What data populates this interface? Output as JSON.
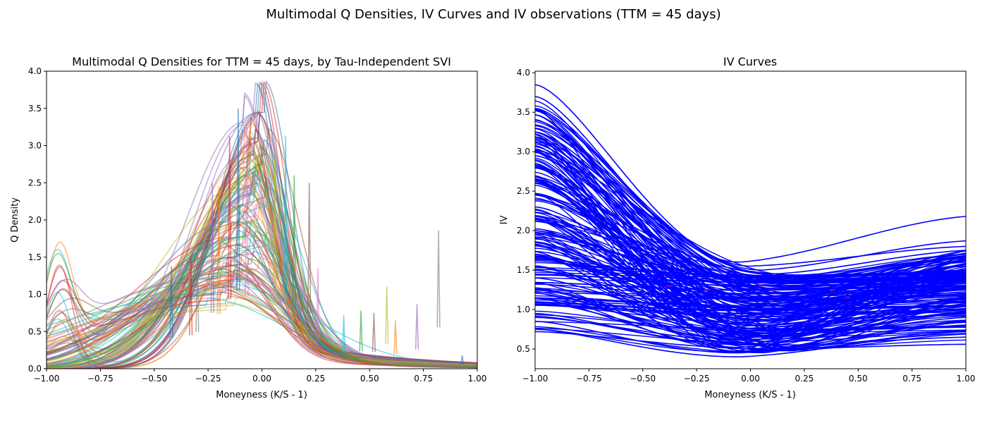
{
  "figure": {
    "suptitle": "Multimodal Q Densities, IV Curves and IV observations (TTM = 45 days)"
  },
  "chart_data": [
    {
      "type": "line",
      "title": "Multimodal Q Densities for TTM = 45 days, by Tau-Independent SVI",
      "xlabel": "Moneyness (K/S - 1)",
      "ylabel": "Q Density",
      "xlim": [
        -1.0,
        1.0
      ],
      "ylim": [
        0.0,
        4.0
      ],
      "xticks": [
        "−1.00",
        "−0.75",
        "−0.50",
        "−0.25",
        "0.00",
        "0.25",
        "0.50",
        "0.75",
        "1.00"
      ],
      "yticks": [
        "0.0",
        "0.5",
        "1.0",
        "1.5",
        "2.0",
        "2.5",
        "3.0",
        "3.5",
        "4.0"
      ],
      "grid": false,
      "legend": "none",
      "colors": [
        "#1f77b4",
        "#ff7f0e",
        "#2ca02c",
        "#d62728",
        "#9467bd",
        "#8c564b",
        "#e377c2",
        "#7f7f7f",
        "#bcbd22",
        "#17becf"
      ],
      "series_style": "many overlapping semi-transparent density curves",
      "representative_curves": [
        {
          "peak_x": -0.03,
          "peak_y": 3.44,
          "width": 0.12
        },
        {
          "peak_x": -0.05,
          "peak_y": 2.95,
          "width": 0.14
        },
        {
          "peak_x": -0.02,
          "peak_y": 2.7,
          "width": 0.15
        },
        {
          "peak_x": -0.06,
          "peak_y": 2.6,
          "width": 0.16
        },
        {
          "peak_x": -0.04,
          "peak_y": 2.4,
          "width": 0.17
        },
        {
          "peak_x": -0.08,
          "peak_y": 2.2,
          "width": 0.18
        },
        {
          "peak_x": -0.03,
          "peak_y": 2.05,
          "width": 0.19
        },
        {
          "peak_x": -0.1,
          "peak_y": 1.9,
          "width": 0.2
        },
        {
          "peak_x": -0.07,
          "peak_y": 1.75,
          "width": 0.21
        },
        {
          "peak_x": -0.05,
          "peak_y": 1.6,
          "width": 0.22
        },
        {
          "peak_x": -0.12,
          "peak_y": 1.5,
          "width": 0.24
        },
        {
          "peak_x": -0.09,
          "peak_y": 1.4,
          "width": 0.26
        },
        {
          "peak_x": -0.15,
          "peak_y": 1.3,
          "width": 0.28
        },
        {
          "peak_x": -0.11,
          "peak_y": 1.2,
          "width": 0.3
        },
        {
          "peak_x": -0.14,
          "peak_y": 1.1,
          "width": 0.33
        },
        {
          "peak_x": -0.18,
          "peak_y": 1.0,
          "width": 0.36
        },
        {
          "peak_x": -0.2,
          "peak_y": 0.95,
          "width": 0.4
        },
        {
          "peak_x": -0.02,
          "peak_y": 3.1,
          "width": 0.13
        },
        {
          "peak_x": -0.06,
          "peak_y": 2.85,
          "width": 0.14
        },
        {
          "peak_x": -0.01,
          "peak_y": 2.5,
          "width": 0.16
        }
      ],
      "left_edge_modes": [
        {
          "peak_x": -0.94,
          "peak_y": 1.27,
          "width": 0.06
        },
        {
          "peak_x": -0.95,
          "peak_y": 1.05,
          "width": 0.06
        },
        {
          "peak_x": -0.93,
          "peak_y": 0.8,
          "width": 0.07
        },
        {
          "peak_x": -0.92,
          "peak_y": 0.6,
          "width": 0.08
        },
        {
          "peak_x": -0.9,
          "peak_y": 0.45,
          "width": 0.1
        }
      ],
      "spikes": [
        {
          "x": -0.11,
          "y": 3.5
        },
        {
          "x": -0.15,
          "y": 3.13
        },
        {
          "x": -0.07,
          "y": 3.25
        },
        {
          "x": 0.11,
          "y": 3.13
        },
        {
          "x": 0.15,
          "y": 2.6
        },
        {
          "x": 0.22,
          "y": 2.5
        },
        {
          "x": 0.06,
          "y": 2.85
        },
        {
          "x": -0.2,
          "y": 2.45
        },
        {
          "x": -0.23,
          "y": 2.5
        },
        {
          "x": -0.3,
          "y": 1.65
        },
        {
          "x": -0.42,
          "y": 1.38
        },
        {
          "x": -0.33,
          "y": 1.5
        },
        {
          "x": 0.26,
          "y": 1.35
        },
        {
          "x": 0.38,
          "y": 0.72
        },
        {
          "x": 0.46,
          "y": 0.78
        },
        {
          "x": 0.52,
          "y": 0.75
        },
        {
          "x": 0.58,
          "y": 1.1
        },
        {
          "x": 0.62,
          "y": 0.65
        },
        {
          "x": 0.72,
          "y": 0.87
        },
        {
          "x": 0.82,
          "y": 1.86
        },
        {
          "x": 0.93,
          "y": 0.18
        }
      ]
    },
    {
      "type": "line",
      "title": "IV Curves",
      "xlabel": "Moneyness (K/S - 1)",
      "ylabel": "IV",
      "xlim": [
        -1.0,
        1.0
      ],
      "ylim": [
        0.25,
        4.02
      ],
      "xticks": [
        "−1.00",
        "−0.75",
        "−0.50",
        "−0.25",
        "0.00",
        "0.25",
        "0.50",
        "0.75",
        "1.00"
      ],
      "yticks": [
        "0.5",
        "1.0",
        "1.5",
        "2.0",
        "2.5",
        "3.0",
        "3.5",
        "4.0"
      ],
      "grid": false,
      "legend": "none",
      "curve_color": "#0000ff",
      "observation_color": "#ff0000",
      "representative_curves": [
        {
          "left": 3.85,
          "min": 1.55,
          "min_x": 0.0,
          "right": 1.8
        },
        {
          "left": 3.7,
          "min": 1.6,
          "min_x": -0.05,
          "right": 2.18
        },
        {
          "left": 3.55,
          "min": 1.5,
          "min_x": 0.05,
          "right": 1.87
        },
        {
          "left": 3.4,
          "min": 1.45,
          "min_x": 0.1,
          "right": 1.75
        },
        {
          "left": 3.25,
          "min": 1.35,
          "min_x": 0.1,
          "right": 1.7
        },
        {
          "left": 3.1,
          "min": 1.3,
          "min_x": 0.05,
          "right": 1.65
        },
        {
          "left": 2.95,
          "min": 1.25,
          "min_x": 0.1,
          "right": 1.6
        },
        {
          "left": 2.8,
          "min": 1.2,
          "min_x": 0.1,
          "right": 1.55
        },
        {
          "left": 2.6,
          "min": 1.15,
          "min_x": 0.05,
          "right": 1.5
        },
        {
          "left": 2.45,
          "min": 1.1,
          "min_x": 0.1,
          "right": 1.45
        },
        {
          "left": 2.3,
          "min": 1.05,
          "min_x": 0.1,
          "right": 1.4
        },
        {
          "left": 2.15,
          "min": 1.0,
          "min_x": 0.05,
          "right": 1.35
        },
        {
          "left": 2.0,
          "min": 0.95,
          "min_x": 0.1,
          "right": 1.3
        },
        {
          "left": 1.85,
          "min": 0.9,
          "min_x": 0.05,
          "right": 1.25
        },
        {
          "left": 1.7,
          "min": 0.85,
          "min_x": 0.1,
          "right": 1.2
        },
        {
          "left": 1.55,
          "min": 0.8,
          "min_x": 0.05,
          "right": 1.1
        },
        {
          "left": 1.4,
          "min": 0.75,
          "min_x": 0.1,
          "right": 1.05
        },
        {
          "left": 1.25,
          "min": 0.7,
          "min_x": 0.05,
          "right": 1.0
        },
        {
          "left": 1.1,
          "min": 0.62,
          "min_x": 0.0,
          "right": 0.95
        },
        {
          "left": 0.95,
          "min": 0.55,
          "min_x": 0.0,
          "right": 0.9
        },
        {
          "left": 0.85,
          "min": 0.45,
          "min_x": -0.05,
          "right": 0.85
        },
        {
          "left": 0.75,
          "min": 0.4,
          "min_x": -0.05,
          "right": 0.72
        },
        {
          "left": 0.72,
          "min": 0.5,
          "min_x": 0.1,
          "right": 0.56
        },
        {
          "left": 0.9,
          "min": 0.55,
          "min_x": 0.2,
          "right": 0.65
        }
      ],
      "observations": [
        {
          "x": -0.38,
          "y": 1.3
        },
        {
          "x": -0.2,
          "y": 1.25
        },
        {
          "x": -0.05,
          "y": 1.05
        },
        {
          "x": 0.05,
          "y": 1.3
        },
        {
          "x": 0.1,
          "y": 1.25
        },
        {
          "x": 0.2,
          "y": 1.2
        },
        {
          "x": 0.38,
          "y": 1.25
        },
        {
          "x": 0.45,
          "y": 1.15
        }
      ]
    }
  ]
}
